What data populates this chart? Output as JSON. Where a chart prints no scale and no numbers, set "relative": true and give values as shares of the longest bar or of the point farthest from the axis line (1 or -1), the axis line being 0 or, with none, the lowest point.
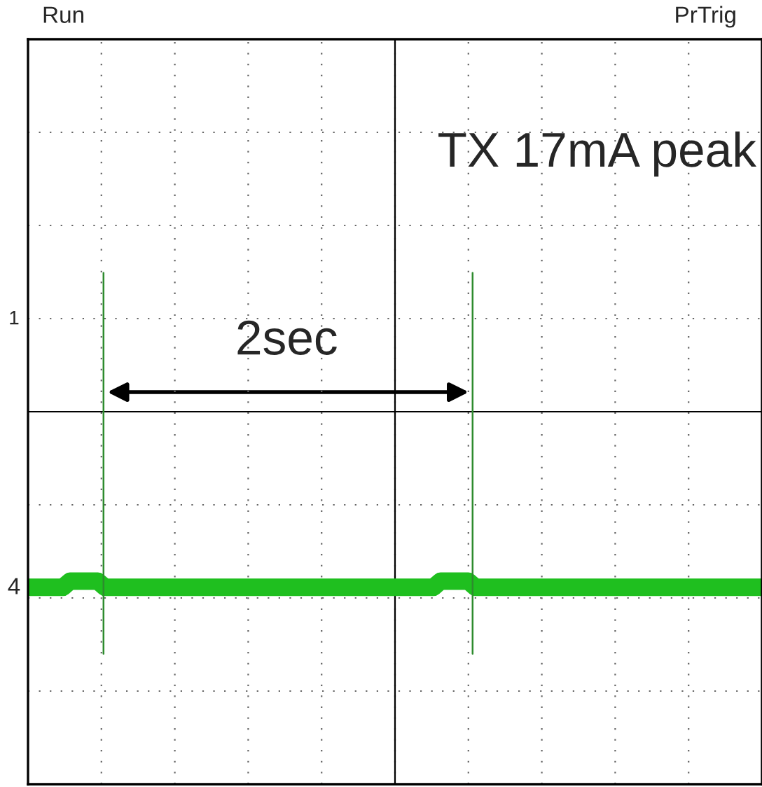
{
  "chart_data": {
    "type": "line",
    "relative": true,
    "categories": [
      null,
      null,
      null,
      null,
      null,
      null,
      null,
      null,
      null,
      null,
      null,
      null,
      null,
      null,
      null,
      null,
      null,
      null,
      null,
      null,
      null,
      null,
      null,
      null,
      null,
      null,
      null,
      null,
      null,
      null,
      null,
      null,
      null,
      null,
      null,
      null,
      null,
      null,
      null,
      null,
      null,
      null,
      null,
      null,
      null,
      null,
      null,
      null,
      null,
      null,
      null,
      null,
      null,
      null,
      null,
      null,
      null,
      null,
      null,
      null,
      null,
      null,
      null,
      null,
      null,
      null,
      null,
      null,
      null,
      null,
      null,
      null,
      null,
      null,
      null,
      null,
      null,
      null,
      null,
      null,
      null,
      null,
      null,
      null,
      null,
      null,
      null,
      null,
      null,
      null,
      null,
      null,
      null,
      null,
      null,
      null,
      null,
      null,
      null,
      null,
      null,
      null,
      null,
      null,
      null,
      null
    ],
    "series": [
      {
        "color": "#1fbf1f",
        "values": [
          0.97,
          0.97,
          0.97,
          0.97,
          0.97,
          0.97,
          1,
          1,
          1,
          1,
          1,
          0.97,
          0.97,
          0.97,
          0.97,
          0.97,
          0.97,
          0.97,
          0.97,
          0.97,
          0.97,
          0.97,
          0.97,
          0.97,
          0.97,
          0.97,
          0.97,
          0.97,
          0.97,
          0.97,
          0.97,
          0.97,
          0.97,
          0.97,
          0.97,
          0.97,
          0.97,
          0.97,
          0.97,
          0.97,
          0.97,
          0.97,
          0.97,
          0.97,
          0.97,
          0.97,
          0.97,
          0.97,
          0.97,
          0.97,
          0.97,
          0.97,
          0.97,
          0.97,
          0.97,
          0.97,
          0.97,
          0.97,
          0.97,
          1,
          1,
          1,
          1,
          1,
          0.97,
          0.97,
          0.97,
          0.97,
          0.97,
          0.97,
          0.97,
          0.97,
          0.97,
          0.97,
          0.97,
          0.97,
          0.97,
          0.97,
          0.97,
          0.97,
          0.97,
          0.97,
          0.97,
          0.97,
          0.97,
          0.97,
          0.97,
          0.97,
          0.97,
          0.97,
          0.97,
          0.97,
          0.97,
          0.97,
          0.97,
          0.97,
          0.97,
          0.97,
          0.97,
          0.97,
          0.97,
          0.97,
          0.97,
          0.97,
          0.97,
          0.97
        ]
      }
    ],
    "annotations": [
      "Run",
      "PrTrig",
      "TX 17mA peak",
      "2sec",
      "1",
      "4"
    ],
    "grid": true,
    "line_style": "solid",
    "legend": false
  }
}
